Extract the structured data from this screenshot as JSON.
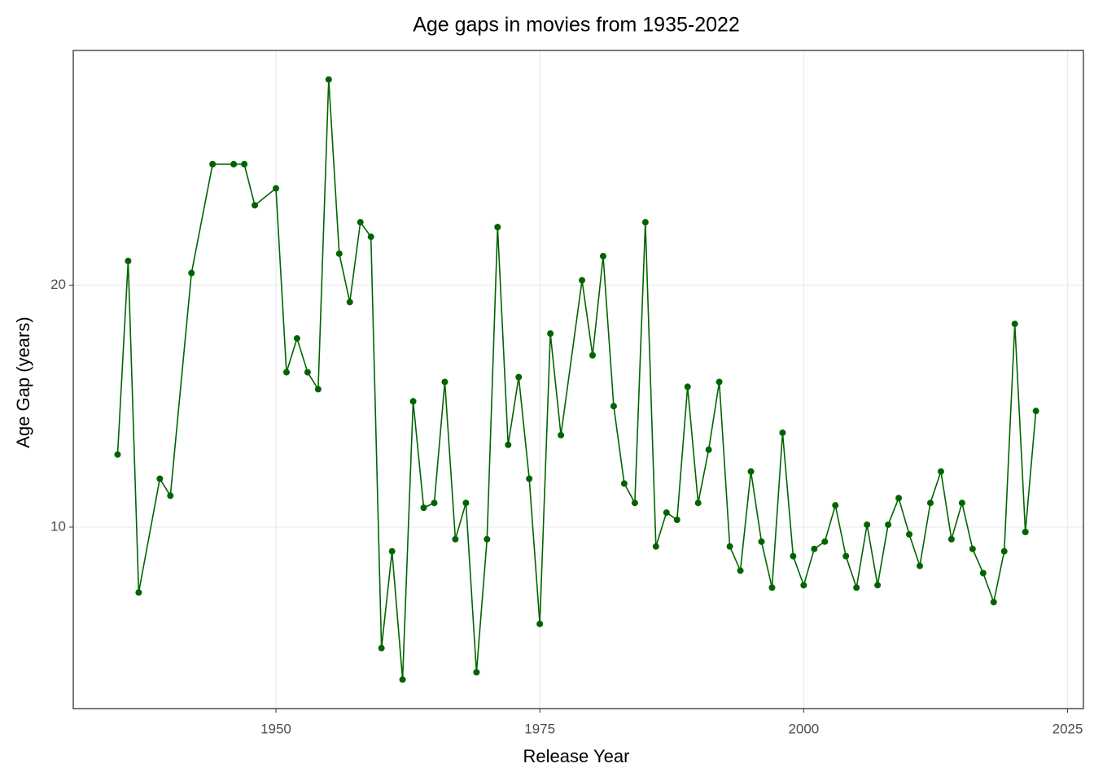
{
  "chart_data": {
    "type": "line",
    "title": "Age gaps in movies from 1935-2022",
    "x_label": "Release Year",
    "y_label": "Age Gap (years)",
    "x": [
      1935,
      1936,
      1937,
      1939,
      1940,
      1942,
      1944,
      1946,
      1947,
      1948,
      1950,
      1951,
      1952,
      1953,
      1954,
      1955,
      1956,
      1957,
      1958,
      1959,
      1960,
      1961,
      1962,
      1963,
      1964,
      1965,
      1966,
      1967,
      1968,
      1969,
      1970,
      1971,
      1972,
      1973,
      1974,
      1975,
      1976,
      1977,
      1979,
      1980,
      1981,
      1982,
      1983,
      1984,
      1985,
      1986,
      1987,
      1988,
      1989,
      1990,
      1991,
      1992,
      1993,
      1994,
      1995,
      1996,
      1997,
      1998,
      1999,
      2000,
      2001,
      2002,
      2003,
      2004,
      2005,
      2006,
      2007,
      2008,
      2009,
      2010,
      2011,
      2012,
      2013,
      2014,
      2015,
      2016,
      2017,
      2018,
      2019,
      2020,
      2021,
      2022
    ],
    "series": [
      {
        "name": "Age Gap",
        "color": "#006400",
        "values": [
          13.0,
          21.0,
          7.3,
          12.0,
          11.3,
          20.5,
          25.0,
          25.0,
          25.0,
          23.3,
          24.0,
          16.4,
          17.8,
          16.4,
          15.7,
          28.5,
          21.3,
          19.3,
          22.6,
          22.0,
          5.0,
          9.0,
          3.7,
          15.2,
          10.8,
          11.0,
          16.0,
          9.5,
          11.0,
          4.0,
          9.5,
          22.4,
          13.4,
          16.2,
          12.0,
          6.0,
          18.0,
          13.8,
          20.2,
          17.1,
          21.2,
          15.0,
          11.8,
          11.0,
          22.6,
          9.2,
          10.6,
          10.3,
          15.8,
          11.0,
          13.2,
          16.0,
          9.2,
          8.2,
          12.3,
          9.4,
          7.5,
          13.9,
          8.8,
          7.6,
          9.1,
          9.4,
          10.9,
          8.8,
          7.5,
          10.1,
          7.6,
          10.1,
          11.2,
          9.7,
          8.4,
          11.0,
          12.3,
          9.5,
          11.0,
          9.1,
          8.1,
          6.9,
          9.0,
          18.4,
          9.8,
          14.8
        ]
      }
    ],
    "xlim": [
      1930.8,
      2026.5
    ],
    "xticks": [
      1950,
      1975,
      2000,
      2025
    ],
    "ylim": [
      2.5,
      29.7
    ],
    "yticks": [
      10,
      20
    ],
    "grid": true
  }
}
